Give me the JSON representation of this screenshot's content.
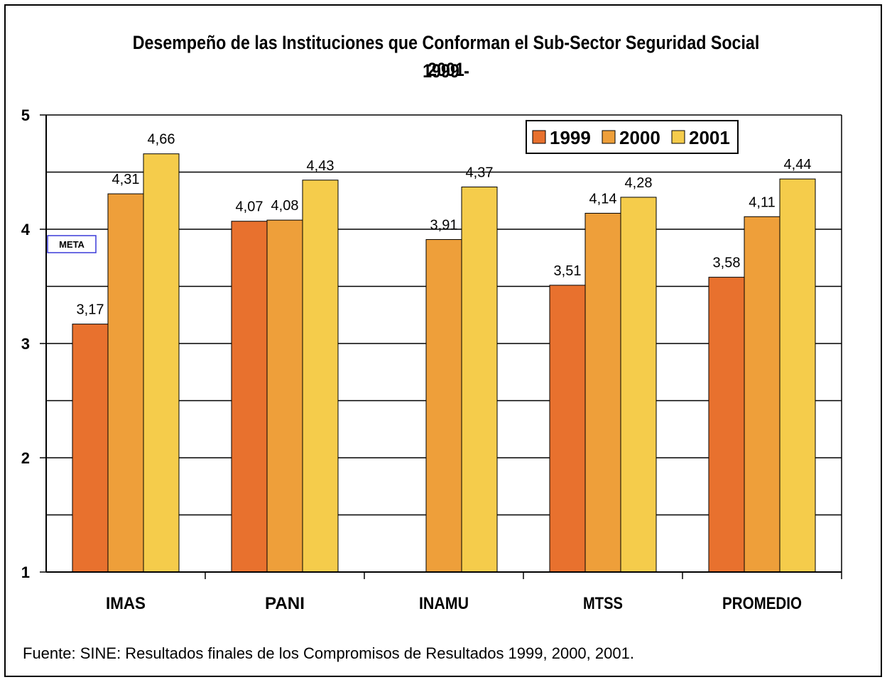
{
  "chart_data": {
    "type": "bar",
    "title_line1": "Desempeño de las Instituciones que Conforman el Sub-Sector Seguridad Social 1999 -",
    "title_line2": "2001",
    "categories": [
      "IMAS",
      "PANI",
      "INAMU",
      "MTSS",
      "PROMEDIO"
    ],
    "series": [
      {
        "name": "1999",
        "color": "#E8712E",
        "values": [
          3.17,
          4.07,
          null,
          3.51,
          3.58
        ],
        "labels": [
          "3,17",
          "4,07",
          "",
          "3,51",
          "3,58"
        ]
      },
      {
        "name": "2000",
        "color": "#EE9F3A",
        "values": [
          4.31,
          4.08,
          3.91,
          4.14,
          4.11
        ],
        "labels": [
          "4,31",
          "4,08",
          "3,91",
          "4,14",
          "4,11"
        ]
      },
      {
        "name": "2001",
        "color": "#F5CC4B",
        "values": [
          4.66,
          4.43,
          4.37,
          4.28,
          4.44
        ],
        "labels": [
          "4,66",
          "4,43",
          "4,37",
          "4,28",
          "4,44"
        ]
      }
    ],
    "ylim": [
      1,
      5
    ],
    "yticks": [
      "1",
      "2",
      "3",
      "4",
      "5"
    ],
    "gridlines": [
      1.5,
      2,
      2.5,
      3,
      3.5,
      4,
      4.5,
      5
    ],
    "annotation": "META",
    "legend_position": "top-right",
    "source": "Fuente: SINE: Resultados finales de los Compromisos de Resultados 1999, 2000, 2001."
  }
}
